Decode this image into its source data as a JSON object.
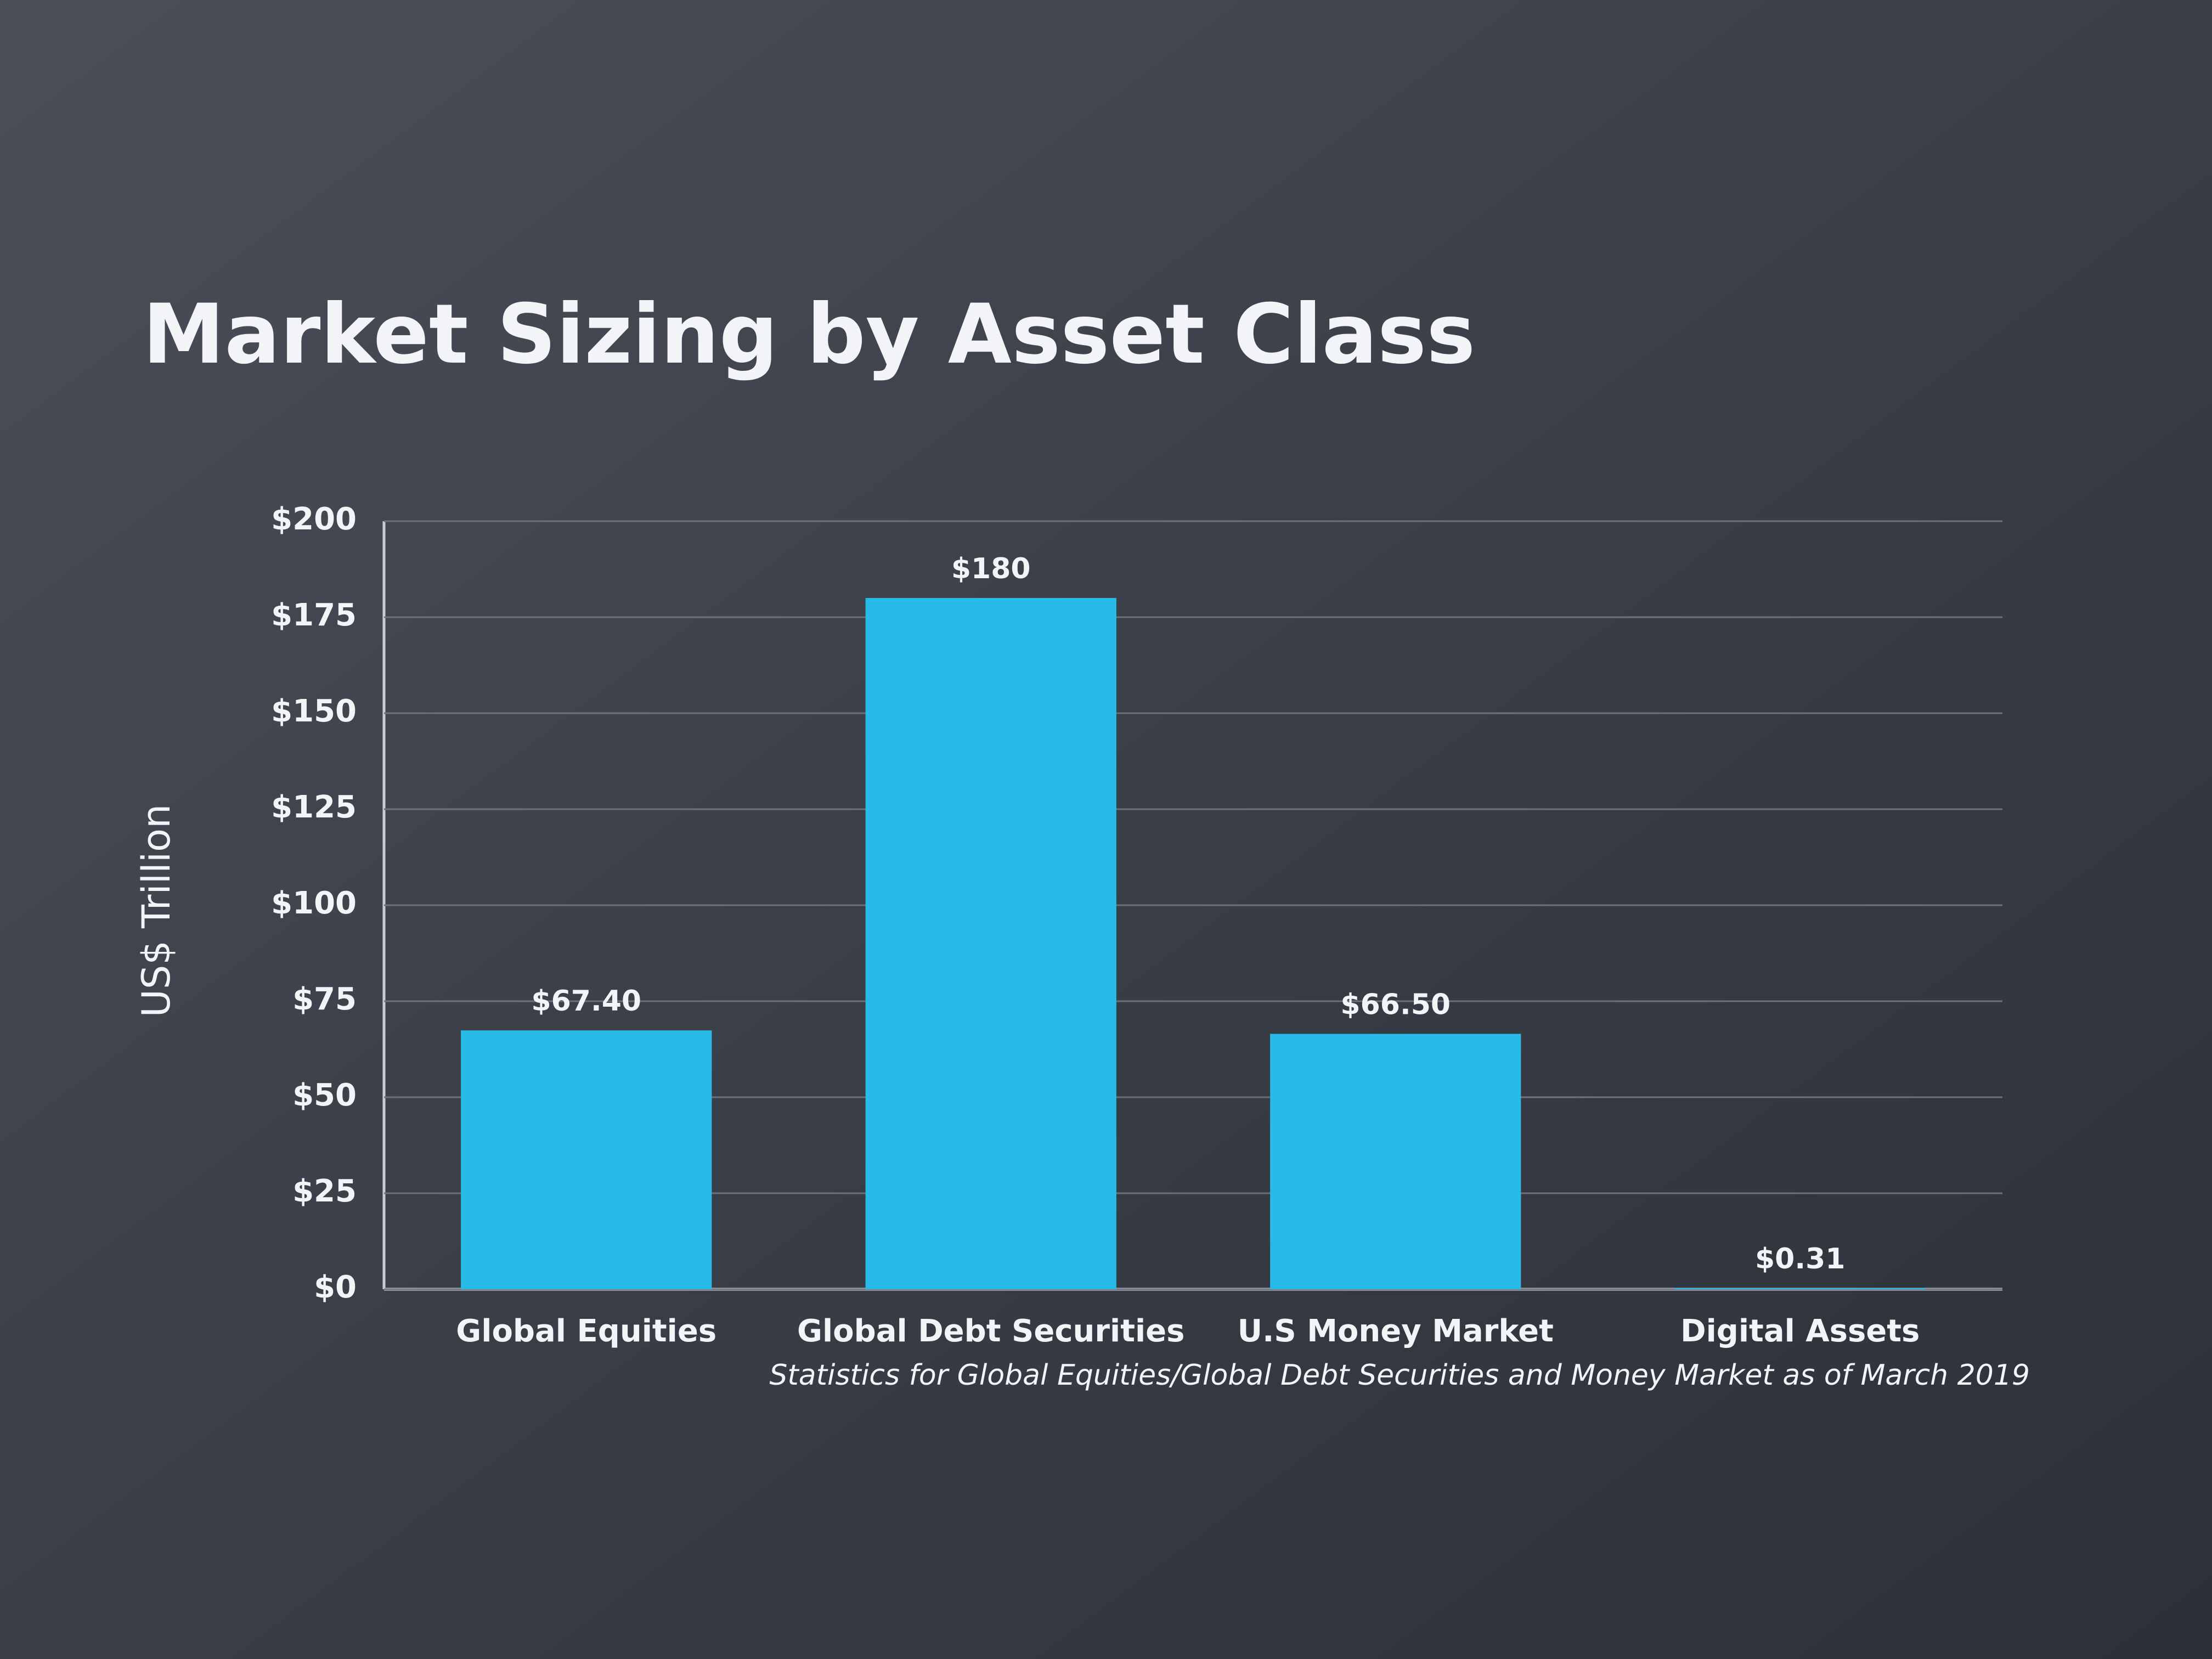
{
  "chart_data": {
    "type": "bar",
    "title": "Market Sizing by Asset Class",
    "y_label": "US$ Trillion",
    "categories": [
      "Global Equities",
      "Global Debt Securities",
      "U.S Money Market",
      "Digital Assets"
    ],
    "values": [
      67.4,
      180,
      66.5,
      0.31
    ],
    "value_labels": [
      "$67.40",
      "$180",
      "$66.50",
      "$0.31"
    ],
    "color": "#29bbe8",
    "ylim": [
      0,
      200
    ],
    "yticks": [
      {
        "value": 0,
        "label": "$0"
      },
      {
        "value": 25,
        "label": "$25"
      },
      {
        "value": 50,
        "label": "$50"
      },
      {
        "value": 75,
        "label": "$75"
      },
      {
        "value": 100,
        "label": "$100"
      },
      {
        "value": 125,
        "label": "$125"
      },
      {
        "value": 150,
        "label": "$150"
      },
      {
        "value": 175,
        "label": "$175"
      },
      {
        "value": 200,
        "label": "$200"
      }
    ],
    "grid": true,
    "footnote": "Statistics for Global Equities/Global Debt Securities and Money Market as of March 2019"
  }
}
